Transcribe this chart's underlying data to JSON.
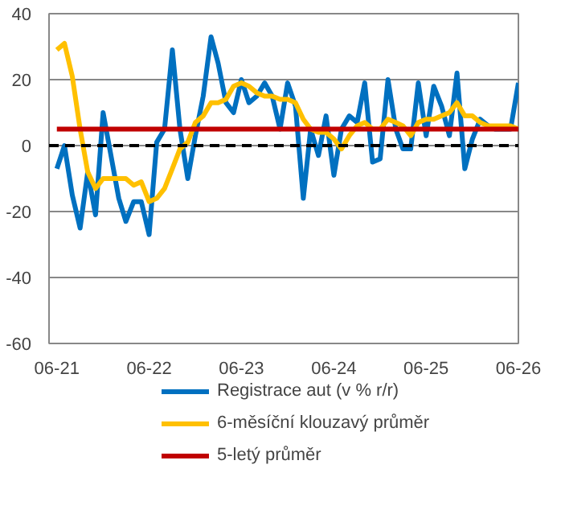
{
  "chart_data": {
    "type": "line",
    "x": [
      "2021-06",
      "2021-07",
      "2021-08",
      "2021-09",
      "2021-10",
      "2021-11",
      "2021-12",
      "2022-01",
      "2022-02",
      "2022-03",
      "2022-04",
      "2022-05",
      "2022-06",
      "2022-07",
      "2022-08",
      "2022-09",
      "2022-10",
      "2022-11",
      "2022-12",
      "2023-01",
      "2023-02",
      "2023-03",
      "2023-04",
      "2023-05",
      "2023-06",
      "2023-07",
      "2023-08",
      "2023-09",
      "2023-10",
      "2023-11",
      "2023-12",
      "2024-01",
      "2024-02",
      "2024-03",
      "2024-04",
      "2024-05",
      "2024-06",
      "2024-07",
      "2024-08",
      "2024-09",
      "2024-10",
      "2024-11",
      "2024-12",
      "2025-01",
      "2025-02",
      "2025-03",
      "2025-04",
      "2025-05",
      "2025-06",
      "2025-07",
      "2025-08",
      "2025-09",
      "2025-10",
      "2025-11",
      "2025-12",
      "2026-01",
      "2026-02",
      "2026-03",
      "2026-04",
      "2026-05",
      "2026-06"
    ],
    "series": [
      {
        "name": "Registrace aut (v % r/r)",
        "color": "#0070c0",
        "values": [
          -7,
          0,
          -15,
          -25,
          -8,
          -21,
          10,
          -3,
          -16,
          -23,
          -17,
          -17,
          -27,
          1,
          5,
          29,
          5,
          -10,
          3,
          15,
          33,
          25,
          13,
          10,
          20,
          13,
          15,
          19,
          15,
          5,
          19,
          12,
          -16,
          5,
          -3,
          9,
          -9,
          5,
          9,
          7,
          19,
          -5,
          -4,
          20,
          5,
          -1,
          -1,
          19,
          3,
          18,
          12,
          3,
          22,
          -7,
          2,
          8,
          6,
          5,
          5,
          5,
          19
        ]
      },
      {
        "name": "6-měsíční klouzavý průměr",
        "color": "#ffc000",
        "values": [
          29,
          31,
          21,
          5,
          -8,
          -13,
          -10,
          -10,
          -10,
          -10,
          -12,
          -11,
          -17,
          -16,
          -13,
          -7,
          -1,
          1,
          7,
          9,
          13,
          13,
          14,
          18,
          19,
          18,
          16,
          15,
          15,
          14,
          14,
          13,
          8,
          5,
          4,
          4,
          2,
          -1,
          3,
          6,
          7,
          5,
          5,
          8,
          7,
          6,
          3,
          7,
          8,
          8,
          9,
          10,
          13,
          9,
          9,
          7,
          6,
          6,
          6,
          6,
          5
        ]
      },
      {
        "name": "5-letý průměr",
        "color": "#c00000",
        "x": [
          "2021-06",
          "2026-06"
        ],
        "values": [
          5,
          5
        ]
      }
    ],
    "ref_lines": [
      {
        "axis": "y",
        "value": 0,
        "color": "#000000",
        "line_style": "dashed"
      }
    ],
    "xlim": [
      "2021-05",
      "2026-06"
    ],
    "xticks": [
      {
        "value": "2021-06",
        "label": "06-21"
      },
      {
        "value": "2022-06",
        "label": "06-22"
      },
      {
        "value": "2023-06",
        "label": "06-23"
      },
      {
        "value": "2024-06",
        "label": "06-24"
      },
      {
        "value": "2025-06",
        "label": "06-25"
      },
      {
        "value": "2026-06",
        "label": "06-26"
      }
    ],
    "ylim": [
      -60,
      40
    ],
    "yticks": [
      -60,
      -40,
      -20,
      0,
      20,
      40
    ],
    "grid": "y",
    "legend": "bottom"
  }
}
